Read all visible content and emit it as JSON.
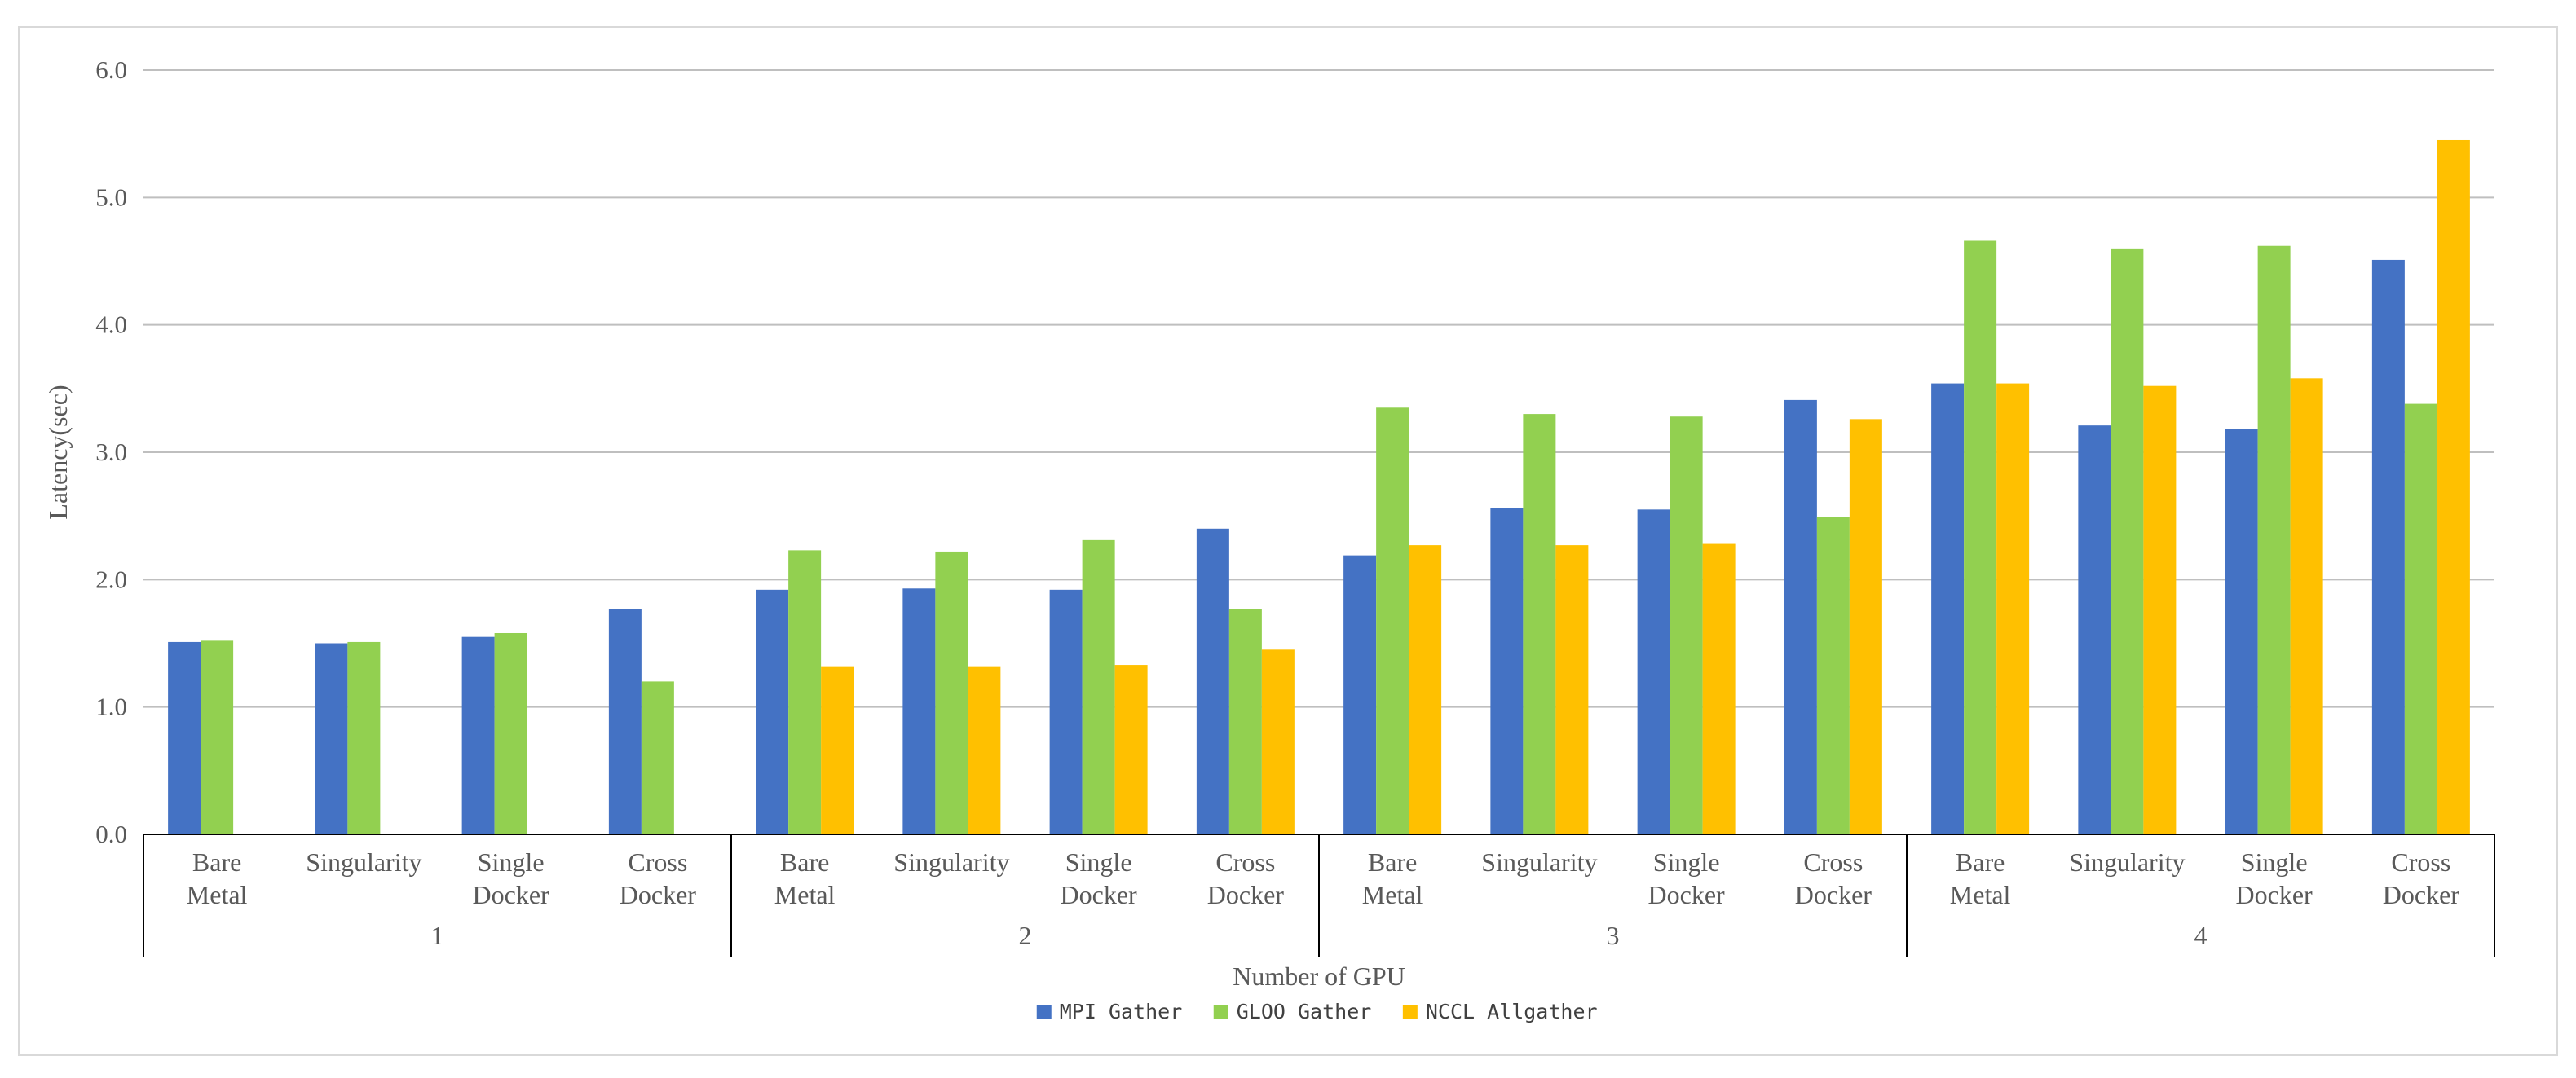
{
  "chart_data": {
    "type": "bar",
    "title": "",
    "xlabel": "Number of GPU",
    "ylabel": "Latency(sec)",
    "ylim": [
      0,
      6
    ],
    "yticks": [
      "0.0",
      "1.0",
      "2.0",
      "3.0",
      "4.0",
      "5.0",
      "6.0"
    ],
    "grid": true,
    "legend_position": "bottom",
    "groups": [
      {
        "label": "1",
        "categories": [
          [
            "Bare",
            "Metal"
          ],
          [
            "Singularity"
          ],
          [
            "Single",
            "Docker"
          ],
          [
            "Cross",
            "Docker"
          ]
        ]
      },
      {
        "label": "2",
        "categories": [
          [
            "Bare",
            "Metal"
          ],
          [
            "Singularity"
          ],
          [
            "Single",
            "Docker"
          ],
          [
            "Cross",
            "Docker"
          ]
        ]
      },
      {
        "label": "3",
        "categories": [
          [
            "Bare",
            "Metal"
          ],
          [
            "Singularity"
          ],
          [
            "Single",
            "Docker"
          ],
          [
            "Cross",
            "Docker"
          ]
        ]
      },
      {
        "label": "4",
        "categories": [
          [
            "Bare",
            "Metal"
          ],
          [
            "Singularity"
          ],
          [
            "Single",
            "Docker"
          ],
          [
            "Cross",
            "Docker"
          ]
        ]
      }
    ],
    "series": [
      {
        "name": "MPI_Gather",
        "color": "#4472c4",
        "values": [
          1.51,
          1.5,
          1.55,
          1.77,
          1.92,
          1.93,
          1.92,
          2.4,
          2.19,
          2.56,
          2.55,
          3.41,
          3.54,
          3.21,
          3.18,
          4.51
        ]
      },
      {
        "name": "GLOO_Gather",
        "color": "#92d050",
        "values": [
          1.52,
          1.51,
          1.58,
          1.2,
          2.23,
          2.22,
          2.31,
          1.77,
          3.35,
          3.3,
          3.28,
          2.49,
          4.66,
          4.6,
          4.62,
          3.38
        ]
      },
      {
        "name": "NCCL_Allgather",
        "color": "#ffc000",
        "values": [
          null,
          null,
          null,
          null,
          1.32,
          1.32,
          1.33,
          1.45,
          2.27,
          2.27,
          2.28,
          3.26,
          3.54,
          3.52,
          3.58,
          5.45
        ]
      }
    ]
  }
}
